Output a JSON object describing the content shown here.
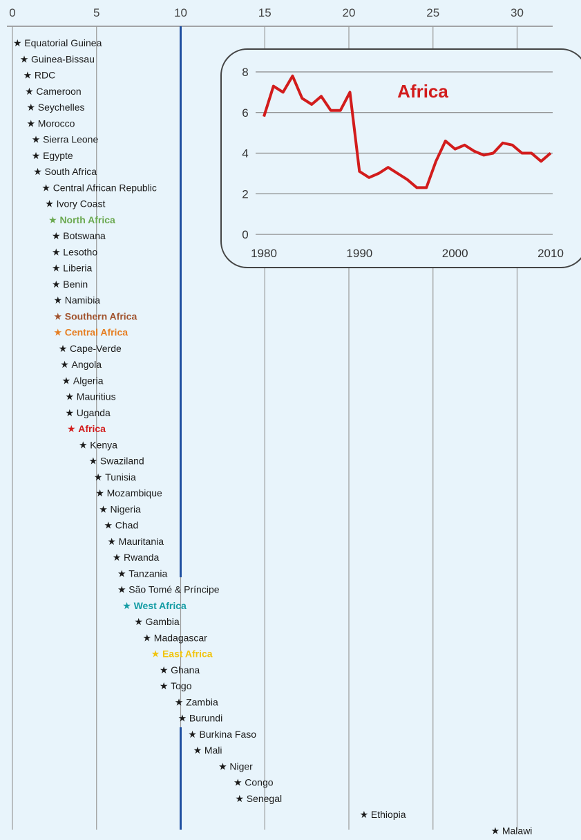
{
  "chart_data": [
    {
      "type": "scatter",
      "title": "",
      "xlabel": "",
      "ylabel": "",
      "xlim": [
        0,
        32.5
      ],
      "x_ticks": [
        0,
        5,
        10,
        15,
        20,
        25,
        30
      ],
      "grid": true,
      "reference_line": 10,
      "points": [
        {
          "label": "Equatorial Guinea",
          "value": 0.3
        },
        {
          "label": "Guinea-Bissau",
          "value": 0.7
        },
        {
          "label": "RDC",
          "value": 0.9
        },
        {
          "label": "Cameroon",
          "value": 1.0
        },
        {
          "label": "Seychelles",
          "value": 1.1
        },
        {
          "label": "Morocco",
          "value": 1.1
        },
        {
          "label": "Sierra Leone",
          "value": 1.4
        },
        {
          "label": "Egypte",
          "value": 1.4
        },
        {
          "label": "South Africa",
          "value": 1.5
        },
        {
          "label": "Central African Republic",
          "value": 2.0
        },
        {
          "label": "Ivory Coast",
          "value": 2.2
        },
        {
          "label": "North Africa",
          "value": 2.4,
          "color": "#6aa84f"
        },
        {
          "label": "Botswana",
          "value": 2.6
        },
        {
          "label": "Lesotho",
          "value": 2.6
        },
        {
          "label": "Liberia",
          "value": 2.6
        },
        {
          "label": "Benin",
          "value": 2.6
        },
        {
          "label": "Namibia",
          "value": 2.7
        },
        {
          "label": "Southern Africa",
          "value": 2.7,
          "color": "#a0522d"
        },
        {
          "label": "Central Africa",
          "value": 2.7,
          "color": "#e67e22"
        },
        {
          "label": "Cape-Verde",
          "value": 3.0
        },
        {
          "label": "Angola",
          "value": 3.1
        },
        {
          "label": "Algeria",
          "value": 3.2
        },
        {
          "label": "Mauritius",
          "value": 3.4
        },
        {
          "label": "Uganda",
          "value": 3.4
        },
        {
          "label": "Africa",
          "value": 3.5,
          "color": "#d21c1c"
        },
        {
          "label": "Kenya",
          "value": 4.2
        },
        {
          "label": "Swaziland",
          "value": 4.8
        },
        {
          "label": "Tunisia",
          "value": 5.1
        },
        {
          "label": "Mozambique",
          "value": 5.2
        },
        {
          "label": "Nigeria",
          "value": 5.4
        },
        {
          "label": "Chad",
          "value": 5.7
        },
        {
          "label": "Mauritania",
          "value": 5.9
        },
        {
          "label": "Rwanda",
          "value": 6.2
        },
        {
          "label": "Tanzania",
          "value": 6.5
        },
        {
          "label": "São Tomé & Príncipe",
          "value": 6.5
        },
        {
          "label": "West Africa",
          "value": 6.8,
          "color": "#139ca4"
        },
        {
          "label": "Gambia",
          "value": 7.5
        },
        {
          "label": "Madagascar",
          "value": 8.0
        },
        {
          "label": "East Africa",
          "value": 8.5,
          "color": "#f1c40f"
        },
        {
          "label": "Ghana",
          "value": 9.0
        },
        {
          "label": "Togo",
          "value": 9.0
        },
        {
          "label": "Zambia",
          "value": 9.9
        },
        {
          "label": "Burundi",
          "value": 10.1
        },
        {
          "label": "Burkina Faso",
          "value": 10.7
        },
        {
          "label": "Mali",
          "value": 11.0
        },
        {
          "label": "Niger",
          "value": 12.5
        },
        {
          "label": "Congo",
          "value": 13.4
        },
        {
          "label": "Senegal",
          "value": 13.5
        },
        {
          "label": "Ethiopia",
          "value": 20.9
        },
        {
          "label": "Malawi",
          "value": 28.7
        }
      ]
    },
    {
      "type": "line",
      "title": "Africa",
      "xlabel": "",
      "ylabel": "",
      "xlim": [
        1980,
        2010
      ],
      "ylim": [
        0,
        8
      ],
      "x_ticks": [
        1980,
        1990,
        2000,
        2010
      ],
      "y_ticks": [
        0,
        2,
        4,
        6,
        8
      ],
      "grid": true,
      "series": [
        {
          "name": "",
          "color": "#d21c1c",
          "x": [
            1980,
            1981,
            1982,
            1983,
            1984,
            1985,
            1986,
            1987,
            1988,
            1989,
            1990,
            1991,
            1992,
            1993,
            1994,
            1995,
            1996,
            1997,
            1998,
            1999,
            2000,
            2001,
            2002,
            2003,
            2004,
            2005,
            2006,
            2007,
            2008,
            2009,
            2010
          ],
          "y": [
            5.8,
            7.3,
            7.0,
            7.8,
            6.7,
            6.4,
            6.8,
            6.1,
            6.1,
            7.0,
            3.1,
            2.8,
            3.0,
            3.3,
            3.0,
            2.7,
            2.3,
            2.3,
            3.6,
            4.6,
            4.2,
            4.4,
            4.1,
            3.9,
            4.0,
            4.5,
            4.4,
            4.0,
            4.0,
            3.6,
            4.0
          ]
        }
      ]
    }
  ]
}
